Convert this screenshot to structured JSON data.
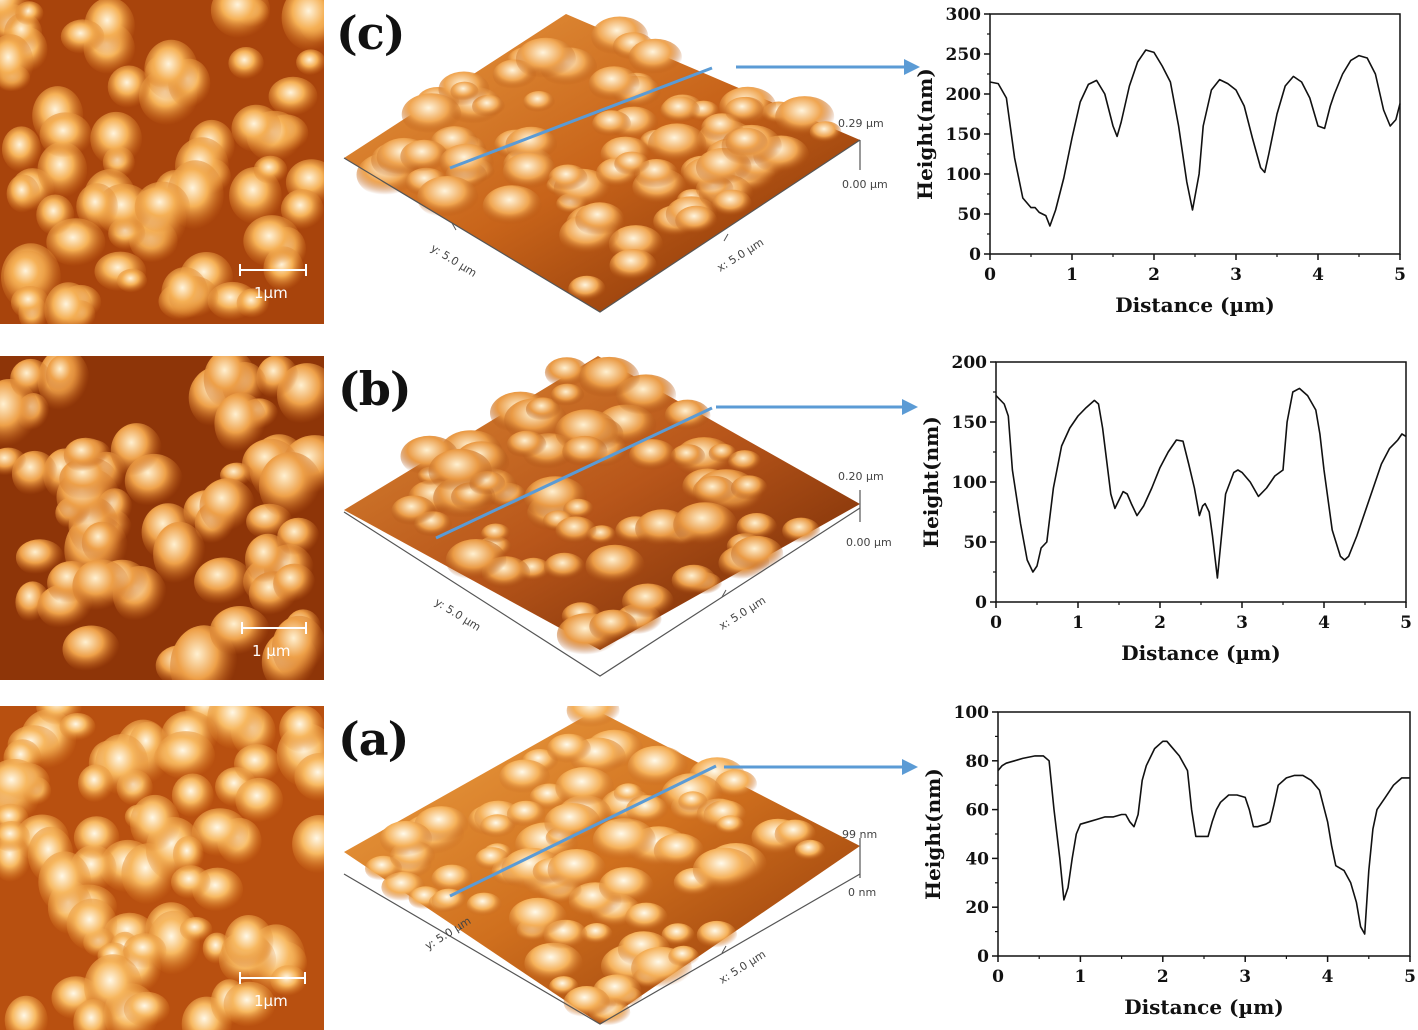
{
  "panels": [
    {
      "id": "c",
      "label": "(c)",
      "scale_bar": "1µm",
      "surface": {
        "z_top": "0.29 µm",
        "z_bottom": "0.00 µm",
        "x_axis": "x: 5.0 µm",
        "y_axis": "y: 5.0 µm"
      }
    },
    {
      "id": "b",
      "label": "(b)",
      "scale_bar": "1 µm",
      "surface": {
        "z_top": "0.20 µm",
        "z_bottom": "0.00 µm",
        "x_axis": "x: 5.0 µm",
        "y_axis": "y: 5.0 µm"
      }
    },
    {
      "id": "a",
      "label": "(a)",
      "scale_bar": "1µm",
      "surface": {
        "z_top": "99 nm",
        "z_bottom": "0 nm",
        "x_axis": "x: 5.0 µm",
        "y_axis": "y: 5.0 µm"
      }
    }
  ],
  "colors": {
    "afm_dark": "#5a1a00",
    "afm_mid": "#c8641a",
    "afm_light": "#fff4dc",
    "arrow": "#5b9bd5",
    "line": "#111111"
  },
  "chart_data": [
    {
      "type": "line",
      "panel": "c",
      "xlabel": "Distance (µm)",
      "ylabel": "Height(nm)",
      "xlim": [
        0,
        5
      ],
      "ylim": [
        0,
        300
      ],
      "xticks": [
        0,
        1,
        2,
        3,
        4,
        5
      ],
      "yticks": [
        0,
        50,
        100,
        150,
        200,
        250,
        300
      ],
      "series": [
        {
          "x": [
            0,
            0.1,
            0.2,
            0.3,
            0.4,
            0.5,
            0.55,
            0.6,
            0.68,
            0.73,
            0.8,
            0.9,
            1.0,
            1.1,
            1.2,
            1.3,
            1.4,
            1.5,
            1.55,
            1.6,
            1.7,
            1.8,
            1.9,
            2.0,
            2.1,
            2.2,
            2.3,
            2.4,
            2.47,
            2.55,
            2.6,
            2.7,
            2.8,
            2.9,
            3.0,
            3.1,
            3.2,
            3.3,
            3.35,
            3.4,
            3.5,
            3.6,
            3.7,
            3.8,
            3.9,
            4.0,
            4.08,
            4.15,
            4.2,
            4.3,
            4.4,
            4.5,
            4.6,
            4.7,
            4.8,
            4.88,
            4.95,
            5.0
          ],
          "values": [
            215,
            213,
            195,
            120,
            70,
            58,
            58,
            52,
            48,
            35,
            55,
            95,
            145,
            190,
            212,
            217,
            200,
            160,
            147,
            165,
            210,
            240,
            255,
            252,
            235,
            215,
            160,
            90,
            55,
            100,
            160,
            205,
            218,
            213,
            205,
            185,
            145,
            108,
            102,
            125,
            175,
            210,
            222,
            215,
            195,
            160,
            157,
            185,
            200,
            225,
            242,
            248,
            245,
            225,
            180,
            160,
            168,
            188
          ]
        }
      ]
    },
    {
      "type": "line",
      "panel": "b",
      "xlabel": "Distance (µm)",
      "ylabel": "Height(nm)",
      "xlim": [
        0,
        5
      ],
      "ylim": [
        0,
        200
      ],
      "xticks": [
        0,
        1,
        2,
        3,
        4,
        5
      ],
      "yticks": [
        0,
        50,
        100,
        150,
        200
      ],
      "series": [
        {
          "x": [
            0,
            0.1,
            0.15,
            0.2,
            0.3,
            0.38,
            0.45,
            0.5,
            0.55,
            0.62,
            0.7,
            0.8,
            0.9,
            1.0,
            1.1,
            1.2,
            1.25,
            1.3,
            1.4,
            1.45,
            1.5,
            1.55,
            1.6,
            1.65,
            1.72,
            1.8,
            1.9,
            2.0,
            2.1,
            2.2,
            2.28,
            2.35,
            2.42,
            2.48,
            2.52,
            2.55,
            2.6,
            2.64,
            2.7,
            2.75,
            2.8,
            2.9,
            2.95,
            3.0,
            3.1,
            3.2,
            3.3,
            3.4,
            3.5,
            3.55,
            3.62,
            3.7,
            3.8,
            3.9,
            3.95,
            4.0,
            4.1,
            4.2,
            4.25,
            4.3,
            4.4,
            4.5,
            4.6,
            4.7,
            4.8,
            4.9,
            4.95,
            5.0
          ],
          "values": [
            172,
            165,
            155,
            110,
            65,
            35,
            25,
            30,
            45,
            50,
            95,
            130,
            145,
            155,
            162,
            168,
            165,
            145,
            90,
            78,
            85,
            92,
            90,
            82,
            72,
            80,
            95,
            112,
            125,
            135,
            134,
            115,
            95,
            72,
            80,
            82,
            75,
            55,
            20,
            55,
            90,
            108,
            110,
            108,
            100,
            88,
            95,
            105,
            110,
            150,
            175,
            178,
            172,
            160,
            140,
            110,
            60,
            38,
            35,
            38,
            55,
            75,
            95,
            115,
            128,
            135,
            140,
            138
          ]
        }
      ]
    },
    {
      "type": "line",
      "panel": "a",
      "xlabel": "Distance (µm)",
      "ylabel": "Height(nm)",
      "xlim": [
        0,
        5
      ],
      "ylim": [
        0,
        100
      ],
      "xticks": [
        0,
        1,
        2,
        3,
        4,
        5
      ],
      "yticks": [
        0,
        20,
        40,
        60,
        80,
        100
      ],
      "series": [
        {
          "x": [
            0,
            0.05,
            0.1,
            0.2,
            0.3,
            0.45,
            0.55,
            0.62,
            0.68,
            0.75,
            0.8,
            0.85,
            0.9,
            0.95,
            1.0,
            1.1,
            1.2,
            1.3,
            1.4,
            1.5,
            1.55,
            1.6,
            1.65,
            1.7,
            1.75,
            1.8,
            1.9,
            2.0,
            2.05,
            2.1,
            2.2,
            2.3,
            2.35,
            2.4,
            2.45,
            2.55,
            2.6,
            2.65,
            2.7,
            2.8,
            2.9,
            3.0,
            3.05,
            3.1,
            3.15,
            3.25,
            3.3,
            3.35,
            3.4,
            3.5,
            3.6,
            3.7,
            3.8,
            3.9,
            4.0,
            4.05,
            4.1,
            4.15,
            4.2,
            4.28,
            4.35,
            4.4,
            4.45,
            4.5,
            4.55,
            4.6,
            4.7,
            4.8,
            4.9,
            5.0
          ],
          "values": [
            76,
            78,
            79,
            80,
            81,
            82,
            82,
            80,
            60,
            40,
            23,
            28,
            40,
            50,
            54,
            55,
            56,
            57,
            57,
            58,
            58,
            55,
            53,
            58,
            72,
            78,
            85,
            88,
            88,
            86,
            82,
            76,
            60,
            49,
            49,
            49,
            55,
            60,
            63,
            66,
            66,
            65,
            60,
            53,
            53,
            54,
            55,
            62,
            70,
            73,
            74,
            74,
            72,
            68,
            55,
            45,
            37,
            36,
            35,
            30,
            22,
            12,
            9,
            35,
            52,
            60,
            65,
            70,
            73,
            73
          ]
        }
      ]
    }
  ]
}
